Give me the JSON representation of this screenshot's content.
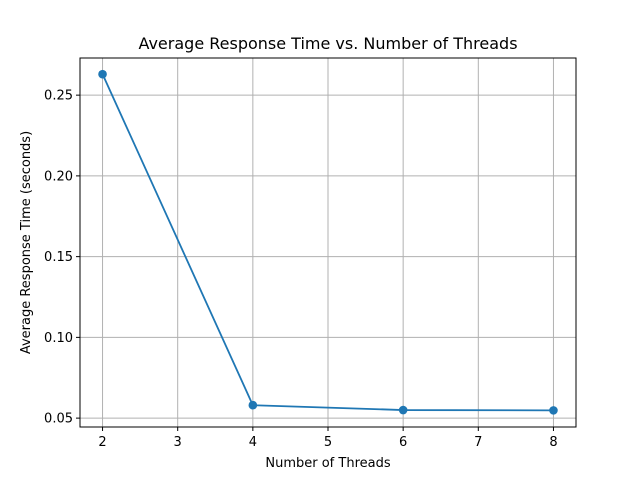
{
  "chart_data": {
    "type": "line",
    "title": "Average Response Time vs. Number of Threads",
    "xlabel": "Number of Threads",
    "ylabel": "Average Response Time (seconds)",
    "x": [
      2,
      4,
      6,
      8
    ],
    "series": [
      {
        "values": [
          0.263,
          0.058,
          0.055,
          0.0548
        ]
      }
    ],
    "xlim": [
      1.7,
      8.3
    ],
    "ylim": [
      0.0445,
      0.273
    ],
    "xticks": [
      2,
      3,
      4,
      5,
      6,
      7,
      8
    ],
    "yticks": [
      0.05,
      0.1,
      0.15,
      0.2,
      0.25
    ],
    "ytick_labels": [
      "0.05",
      "0.10",
      "0.15",
      "0.20",
      "0.25"
    ],
    "grid": true,
    "line_color": "#1f77b4",
    "marker": "circle"
  }
}
